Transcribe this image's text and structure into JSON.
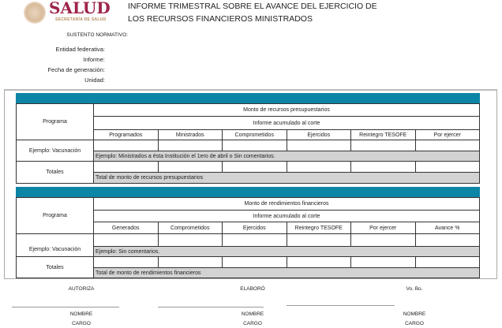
{
  "header": {
    "logo_text": "SALUD",
    "logo_sub": "SECRETARÍA DE SALUD",
    "title_line1": "INFORME TRIMESTRAL SOBRE EL AVANCE DEL EJERCICIO DE",
    "title_line2": "LOS RECURSOS FINANCIEROS MINISTRADOS"
  },
  "meta": {
    "sustento": "SUSTENTO NORMATIVO:",
    "entidad": "Entidad federativa:",
    "informe": "Informe:",
    "fecha": "Fecha de generación:",
    "unidad": "Unidad:"
  },
  "table1": {
    "programa": "Programa",
    "title": "Monto de recursos presupuestarios",
    "subtitle": "Informe acumulado al corte",
    "columns": [
      "Programados",
      "Ministrados",
      "Comprometidos",
      "Ejercidos",
      "Reintegro TESOFE",
      "Por ejercer"
    ],
    "example_label": "Ejemplo: Vacunación",
    "example_note": "Ejemplo: Ministrados a ésta Institución el 1ero de abril o Sin comentarios.",
    "totals_label": "Totales",
    "totals_note": "Total de monto de recursos presupuestarios"
  },
  "table2": {
    "programa": "Programa",
    "title": "Monto de rendimientos financieros",
    "subtitle": "Informe acumulado al corte",
    "columns": [
      "Generados",
      "Comprometidos",
      "Ejercidos",
      "Reintegro TESOFE",
      "Por ejercer",
      "Avance %"
    ],
    "example_label": "Ejemplo: Vacunación",
    "example_note": "Ejemplo: Sin comentarios.",
    "totals_label": "Totales",
    "totals_note": "Total de monto de rendimientos financieros"
  },
  "signatures": [
    {
      "role": "AUTORIZA",
      "name": "NOMBRE",
      "position": "CARGO"
    },
    {
      "role": "ELABORÓ",
      "name": "NOMBRE",
      "position": "CARGO"
    },
    {
      "role": "Vo. Bo.",
      "name": "NOMBRE",
      "position": "CARGO"
    }
  ],
  "colors": {
    "bar": "#0d85a6",
    "brand": "#9d2449",
    "note_bg": "#d3d3d3"
  }
}
